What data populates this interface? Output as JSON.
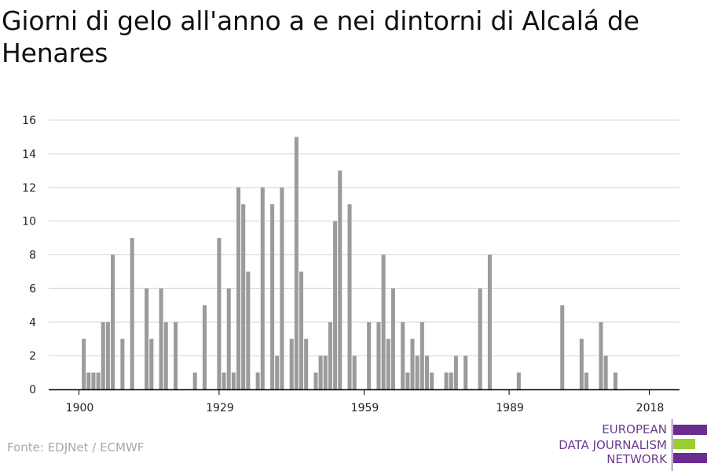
{
  "title": "Giorni di gelo all'anno a e nei dintorni di Alcalá de Henares",
  "source": "Fonte: EDJNet / ECMWF",
  "logo": {
    "lines": [
      "EUROPEAN",
      "DATA JOURNALISM",
      "NETWORK"
    ],
    "text_color": "#6a3a8e",
    "bar_colors": [
      "#6a2c8f",
      "#9acd32",
      "#6a2c8f"
    ]
  },
  "colors": {
    "bar": "#9b9b9b",
    "grid": "#dddddd",
    "axis": "#000000"
  },
  "chart_data": {
    "type": "bar",
    "title": "Giorni di gelo all'anno a e nei dintorni di Alcalá de Henares",
    "xlabel": "",
    "ylabel": "",
    "ylim": [
      0,
      16
    ],
    "xlim": [
      1900,
      2020
    ],
    "yticks": [
      0,
      2,
      4,
      6,
      8,
      10,
      12,
      14,
      16
    ],
    "xticks": [
      1900,
      1929,
      1959,
      1989,
      2018
    ],
    "grid": true,
    "legend": "none",
    "x": [
      1900,
      1901,
      1902,
      1903,
      1904,
      1905,
      1906,
      1907,
      1908,
      1909,
      1910,
      1911,
      1912,
      1913,
      1914,
      1915,
      1916,
      1917,
      1918,
      1919,
      1920,
      1921,
      1922,
      1923,
      1924,
      1925,
      1926,
      1927,
      1928,
      1929,
      1930,
      1931,
      1932,
      1933,
      1934,
      1935,
      1936,
      1937,
      1938,
      1939,
      1940,
      1941,
      1942,
      1943,
      1944,
      1945,
      1946,
      1947,
      1948,
      1949,
      1950,
      1951,
      1952,
      1953,
      1954,
      1955,
      1956,
      1957,
      1958,
      1959,
      1960,
      1961,
      1962,
      1963,
      1964,
      1965,
      1966,
      1967,
      1968,
      1969,
      1970,
      1971,
      1972,
      1973,
      1974,
      1975,
      1976,
      1977,
      1978,
      1979,
      1980,
      1981,
      1982,
      1983,
      1984,
      1985,
      1986,
      1987,
      1988,
      1989,
      1990,
      1991,
      1992,
      1993,
      1994,
      1995,
      1996,
      1997,
      1998,
      1999,
      2000,
      2001,
      2002,
      2003,
      2004,
      2005,
      2006,
      2007,
      2008,
      2009,
      2010,
      2011,
      2012,
      2013,
      2014,
      2015,
      2016,
      2017,
      2018,
      2019
    ],
    "values": [
      0,
      3,
      1,
      1,
      1,
      4,
      4,
      8,
      0,
      3,
      0,
      9,
      0,
      0,
      6,
      3,
      0,
      6,
      4,
      0,
      4,
      0,
      0,
      0,
      1,
      0,
      5,
      0,
      0,
      9,
      1,
      6,
      1,
      12,
      11,
      7,
      0,
      1,
      12,
      0,
      11,
      2,
      12,
      0,
      3,
      15,
      7,
      3,
      0,
      1,
      2,
      2,
      4,
      10,
      13,
      0,
      11,
      2,
      0,
      0,
      4,
      0,
      4,
      8,
      3,
      6,
      0,
      4,
      1,
      3,
      2,
      4,
      2,
      1,
      0,
      0,
      1,
      1,
      2,
      0,
      2,
      0,
      0,
      6,
      0,
      8,
      0,
      0,
      0,
      0,
      0,
      1,
      0,
      0,
      0,
      0,
      0,
      0,
      0,
      0,
      5,
      0,
      0,
      0,
      3,
      1,
      0,
      0,
      4,
      2,
      0,
      1,
      0,
      0,
      0,
      0,
      0,
      0,
      0,
      0
    ]
  }
}
